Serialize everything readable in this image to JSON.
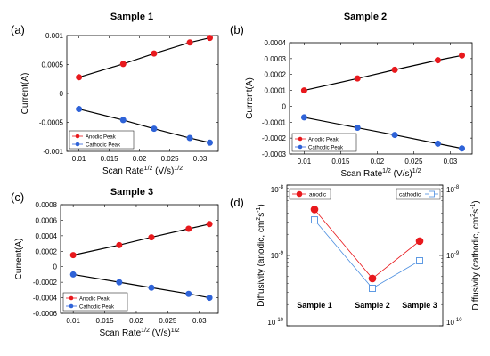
{
  "chart_data": [
    {
      "type": "line",
      "panel_label": "(a)",
      "title": "Sample 1",
      "xlabel": "Scan Rate",
      "xlabel_sup": "1/2",
      "xlabel_units": "(V/s)",
      "xlabel_units_sup": "1/2",
      "ylabel": "Current(A)",
      "xlim": [
        0.008,
        0.033
      ],
      "ylim": [
        -0.001,
        0.001
      ],
      "xticks": [
        0.01,
        0.015,
        0.02,
        0.025,
        0.03
      ],
      "xtick_labels": [
        "0.01",
        "0.015",
        "0.02",
        "0.025",
        "0.03"
      ],
      "yticks": [
        -0.001,
        -0.0005,
        0,
        0.0005,
        0.001
      ],
      "ytick_labels": [
        "-0.001",
        "-0.0005",
        "0",
        "0.0005",
        "0.001"
      ],
      "legend_position": "bottom-left",
      "series": [
        {
          "name": "Anodic Peak",
          "color": "#e8191d",
          "x": [
            0.01,
            0.0173,
            0.0224,
            0.0283,
            0.0316
          ],
          "y": [
            0.00028,
            0.00051,
            0.00069,
            0.00088,
            0.00096
          ]
        },
        {
          "name": "Cathodic Peak",
          "color": "#2f63d8",
          "x": [
            0.01,
            0.0173,
            0.0224,
            0.0283,
            0.0316
          ],
          "y": [
            -0.00027,
            -0.00046,
            -0.00061,
            -0.00077,
            -0.00085
          ]
        }
      ]
    },
    {
      "type": "line",
      "panel_label": "(b)",
      "title": "Sample 2",
      "xlabel": "Scan Rate",
      "xlabel_sup": "1/2",
      "xlabel_units": "(V/s)",
      "xlabel_units_sup": "1/2",
      "ylabel": "Current(A)",
      "xlim": [
        0.008,
        0.033
      ],
      "ylim": [
        -0.0003,
        0.0004
      ],
      "xticks": [
        0.01,
        0.015,
        0.02,
        0.025,
        0.03
      ],
      "xtick_labels": [
        "0.01",
        "0.015",
        "0.02",
        "0.025",
        "0.03"
      ],
      "yticks": [
        -0.0003,
        -0.0002,
        -0.0001,
        0,
        0.0001,
        0.0002,
        0.0003,
        0.0004
      ],
      "ytick_labels": [
        "-0.0003",
        "-0.0002",
        "-0.0001",
        "0",
        "0.0001",
        "0.0002",
        "0.0003",
        "0.0004"
      ],
      "legend_position": "bottom-left",
      "series": [
        {
          "name": "Anodic Peak",
          "color": "#e8191d",
          "x": [
            0.01,
            0.0173,
            0.0224,
            0.0283,
            0.0316
          ],
          "y": [
            0.0001,
            0.000175,
            0.00023,
            0.00029,
            0.00032
          ]
        },
        {
          "name": "Cathodic Peak",
          "color": "#2f63d8",
          "x": [
            0.01,
            0.0173,
            0.0224,
            0.0283,
            0.0316
          ],
          "y": [
            -7e-05,
            -0.000135,
            -0.00018,
            -0.000235,
            -0.000265
          ]
        }
      ]
    },
    {
      "type": "line",
      "panel_label": "(c)",
      "title": "Sample 3",
      "xlabel": "Scan Rate",
      "xlabel_sup": "1/2",
      "xlabel_units": "(V/s)",
      "xlabel_units_sup": "1/2",
      "ylabel": "Current(A)",
      "xlim": [
        0.008,
        0.033
      ],
      "ylim": [
        -0.0006,
        0.0008
      ],
      "xticks": [
        0.01,
        0.015,
        0.02,
        0.025,
        0.03
      ],
      "xtick_labels": [
        "0.01",
        "0.015",
        "0.02",
        "0.025",
        "0.03"
      ],
      "yticks": [
        -0.0006,
        -0.0004,
        -0.0002,
        0,
        0.0002,
        0.0004,
        0.0006,
        0.0008
      ],
      "ytick_labels": [
        "-0.0006",
        "-0.0004",
        "-0.0002",
        "0",
        "0.0002",
        "0.0004",
        "0.0006",
        "0.0008"
      ],
      "legend_position": "bottom-left",
      "series": [
        {
          "name": "Anodic Peak",
          "color": "#e8191d",
          "x": [
            0.01,
            0.0173,
            0.0224,
            0.0283,
            0.0316
          ],
          "y": [
            0.00015,
            0.00028,
            0.00038,
            0.00049,
            0.00055
          ]
        },
        {
          "name": "Cathodic Peak",
          "color": "#2f63d8",
          "x": [
            0.01,
            0.0173,
            0.0224,
            0.0283,
            0.0316
          ],
          "y": [
            -0.0001,
            -0.0002,
            -0.00027,
            -0.00035,
            -0.0004
          ]
        }
      ]
    },
    {
      "type": "line",
      "panel_label": "(d)",
      "title": "",
      "yscale": "log",
      "categories": [
        "Sample 1",
        "Sample 2",
        "Sample 3"
      ],
      "ylabel_left": "Diffusivity (anodic, cm",
      "ylabel_left_sup": "2",
      "ylabel_left_mid": "s",
      "ylabel_left_sup2": "-1",
      "ylabel_left_end": ")",
      "ylabel_right": "Diffusivity (cathodic, cm",
      "ylabel_right_sup": "2",
      "ylabel_right_mid": "s",
      "ylabel_right_sup2": "-1",
      "ylabel_right_end": ")",
      "ylim": [
        1e-10,
        1e-08
      ],
      "ytick_base": "10",
      "yticks": [
        {
          "value": 1e-10,
          "exp": "-10"
        },
        {
          "value": 1e-09,
          "exp": "-9"
        },
        {
          "value": 1e-08,
          "exp": "-8"
        }
      ],
      "series": [
        {
          "name": "anodic",
          "color": "#e8191d",
          "marker": "circle-filled",
          "values": [
            4.5e-09,
            4.7e-10,
            1.6e-09
          ]
        },
        {
          "name": "cathodic",
          "color": "#4d8fe0",
          "marker": "square-open",
          "values": [
            3.2e-09,
            3.4e-10,
            8.4e-10
          ]
        }
      ]
    }
  ]
}
